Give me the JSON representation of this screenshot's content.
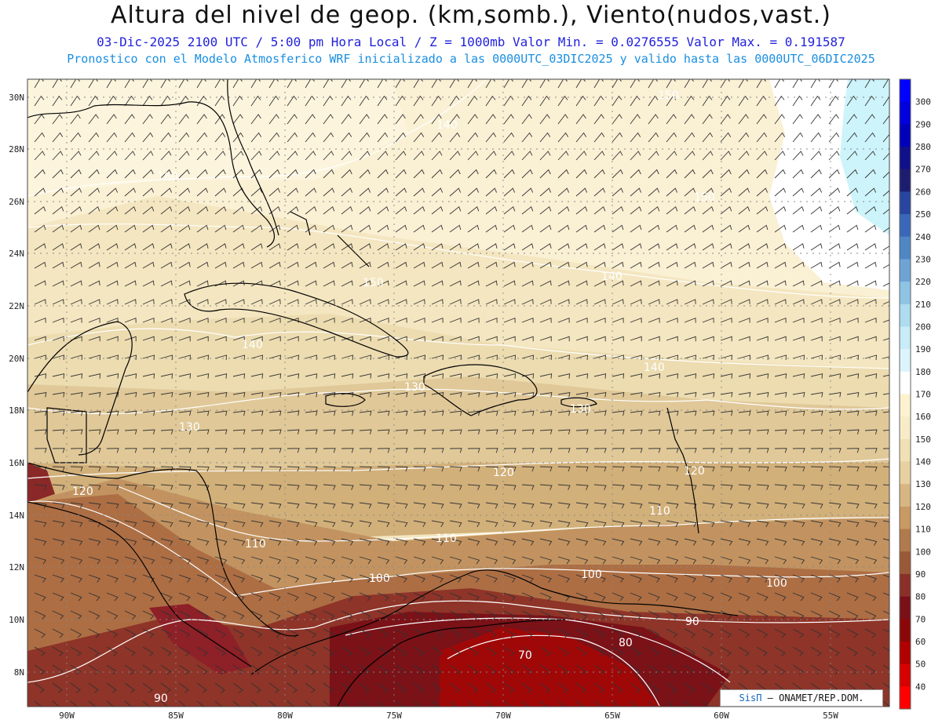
{
  "title": "Altura del nivel de geop. (km,somb.), Viento(nudos,vast.)",
  "subtitle": "03-Dic-2025  2100 UTC / 5:00 pm Hora Local / Z = 1000mb  Valor Min. = 0.0276555  Valor Max. = 0.191587",
  "subtitle2": "Pronostico con el Modelo Atmosferico WRF inicializado a las 0000UTC_03DIC2025 y valido hasta las  0000UTC_06DIC2025",
  "credit": {
    "brand": "SisΠ",
    "text": "– ONAMET/REP.DOM."
  },
  "lat_labels": [
    "30N",
    "28N",
    "26N",
    "24N",
    "22N",
    "20N",
    "18N",
    "16N",
    "14N",
    "12N",
    "10N",
    "8N"
  ],
  "lon_labels": [
    "90W",
    "85W",
    "80W",
    "75W",
    "70W",
    "65W",
    "60W",
    "55W"
  ],
  "colorbar": {
    "labels": [
      "300",
      "290",
      "280",
      "270",
      "260",
      "250",
      "240",
      "230",
      "220",
      "210",
      "200",
      "190",
      "180",
      "170",
      "160",
      "150",
      "140",
      "130",
      "120",
      "110",
      "100",
      "90",
      "80",
      "70",
      "60",
      "50",
      "40"
    ],
    "colors": [
      "#0000ff",
      "#0000dd",
      "#0000bb",
      "#10108a",
      "#1d1d70",
      "#2846a0",
      "#3a68b8",
      "#4f86c4",
      "#6ea4d4",
      "#8ec4e4",
      "#aedcf0",
      "#c8ecf8",
      "#dcf4fc",
      "#ffffff",
      "#fcf2d0",
      "#f8ecc8",
      "#f0e0b4",
      "#e8d0a0",
      "#d8b682",
      "#c89a62",
      "#b07a4c",
      "#9a5a38",
      "#8a3028",
      "#7a1018",
      "#8c0808",
      "#b00000",
      "#d80000",
      "#ff0000"
    ]
  },
  "contour_labels": [
    "150",
    "140",
    "160",
    "150",
    "150",
    "140",
    "140",
    "130",
    "140",
    "130",
    "130",
    "120",
    "120",
    "110",
    "110",
    "110",
    "100",
    "100",
    "100",
    "90",
    "80",
    "70",
    "120",
    "90"
  ],
  "colors": {
    "land_line": "#000000",
    "contour": "#ffffff",
    "barb": "#333333",
    "grid": "#888888"
  }
}
